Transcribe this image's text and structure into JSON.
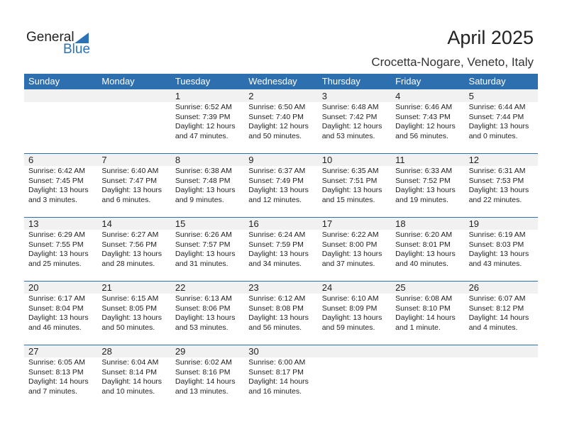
{
  "logo": {
    "general": "General",
    "blue": "Blue"
  },
  "title": "April 2025",
  "location": "Crocetta-Nogare, Veneto, Italy",
  "colors": {
    "header": "#2e6fb0",
    "band": "#f1f1f1"
  },
  "days": [
    "Sunday",
    "Monday",
    "Tuesday",
    "Wednesday",
    "Thursday",
    "Friday",
    "Saturday"
  ],
  "weeks": [
    [
      null,
      null,
      {
        "day": "1",
        "sunrise": "Sunrise: 6:52 AM",
        "sunset": "Sunset: 7:39 PM",
        "daylight": "Daylight: 12 hours",
        "minutes": "and 47 minutes."
      },
      {
        "day": "2",
        "sunrise": "Sunrise: 6:50 AM",
        "sunset": "Sunset: 7:40 PM",
        "daylight": "Daylight: 12 hours",
        "minutes": "and 50 minutes."
      },
      {
        "day": "3",
        "sunrise": "Sunrise: 6:48 AM",
        "sunset": "Sunset: 7:42 PM",
        "daylight": "Daylight: 12 hours",
        "minutes": "and 53 minutes."
      },
      {
        "day": "4",
        "sunrise": "Sunrise: 6:46 AM",
        "sunset": "Sunset: 7:43 PM",
        "daylight": "Daylight: 12 hours",
        "minutes": "and 56 minutes."
      },
      {
        "day": "5",
        "sunrise": "Sunrise: 6:44 AM",
        "sunset": "Sunset: 7:44 PM",
        "daylight": "Daylight: 13 hours",
        "minutes": "and 0 minutes."
      }
    ],
    [
      {
        "day": "6",
        "sunrise": "Sunrise: 6:42 AM",
        "sunset": "Sunset: 7:45 PM",
        "daylight": "Daylight: 13 hours",
        "minutes": "and 3 minutes."
      },
      {
        "day": "7",
        "sunrise": "Sunrise: 6:40 AM",
        "sunset": "Sunset: 7:47 PM",
        "daylight": "Daylight: 13 hours",
        "minutes": "and 6 minutes."
      },
      {
        "day": "8",
        "sunrise": "Sunrise: 6:38 AM",
        "sunset": "Sunset: 7:48 PM",
        "daylight": "Daylight: 13 hours",
        "minutes": "and 9 minutes."
      },
      {
        "day": "9",
        "sunrise": "Sunrise: 6:37 AM",
        "sunset": "Sunset: 7:49 PM",
        "daylight": "Daylight: 13 hours",
        "minutes": "and 12 minutes."
      },
      {
        "day": "10",
        "sunrise": "Sunrise: 6:35 AM",
        "sunset": "Sunset: 7:51 PM",
        "daylight": "Daylight: 13 hours",
        "minutes": "and 15 minutes."
      },
      {
        "day": "11",
        "sunrise": "Sunrise: 6:33 AM",
        "sunset": "Sunset: 7:52 PM",
        "daylight": "Daylight: 13 hours",
        "minutes": "and 19 minutes."
      },
      {
        "day": "12",
        "sunrise": "Sunrise: 6:31 AM",
        "sunset": "Sunset: 7:53 PM",
        "daylight": "Daylight: 13 hours",
        "minutes": "and 22 minutes."
      }
    ],
    [
      {
        "day": "13",
        "sunrise": "Sunrise: 6:29 AM",
        "sunset": "Sunset: 7:55 PM",
        "daylight": "Daylight: 13 hours",
        "minutes": "and 25 minutes."
      },
      {
        "day": "14",
        "sunrise": "Sunrise: 6:27 AM",
        "sunset": "Sunset: 7:56 PM",
        "daylight": "Daylight: 13 hours",
        "minutes": "and 28 minutes."
      },
      {
        "day": "15",
        "sunrise": "Sunrise: 6:26 AM",
        "sunset": "Sunset: 7:57 PM",
        "daylight": "Daylight: 13 hours",
        "minutes": "and 31 minutes."
      },
      {
        "day": "16",
        "sunrise": "Sunrise: 6:24 AM",
        "sunset": "Sunset: 7:59 PM",
        "daylight": "Daylight: 13 hours",
        "minutes": "and 34 minutes."
      },
      {
        "day": "17",
        "sunrise": "Sunrise: 6:22 AM",
        "sunset": "Sunset: 8:00 PM",
        "daylight": "Daylight: 13 hours",
        "minutes": "and 37 minutes."
      },
      {
        "day": "18",
        "sunrise": "Sunrise: 6:20 AM",
        "sunset": "Sunset: 8:01 PM",
        "daylight": "Daylight: 13 hours",
        "minutes": "and 40 minutes."
      },
      {
        "day": "19",
        "sunrise": "Sunrise: 6:19 AM",
        "sunset": "Sunset: 8:03 PM",
        "daylight": "Daylight: 13 hours",
        "minutes": "and 43 minutes."
      }
    ],
    [
      {
        "day": "20",
        "sunrise": "Sunrise: 6:17 AM",
        "sunset": "Sunset: 8:04 PM",
        "daylight": "Daylight: 13 hours",
        "minutes": "and 46 minutes."
      },
      {
        "day": "21",
        "sunrise": "Sunrise: 6:15 AM",
        "sunset": "Sunset: 8:05 PM",
        "daylight": "Daylight: 13 hours",
        "minutes": "and 50 minutes."
      },
      {
        "day": "22",
        "sunrise": "Sunrise: 6:13 AM",
        "sunset": "Sunset: 8:06 PM",
        "daylight": "Daylight: 13 hours",
        "minutes": "and 53 minutes."
      },
      {
        "day": "23",
        "sunrise": "Sunrise: 6:12 AM",
        "sunset": "Sunset: 8:08 PM",
        "daylight": "Daylight: 13 hours",
        "minutes": "and 56 minutes."
      },
      {
        "day": "24",
        "sunrise": "Sunrise: 6:10 AM",
        "sunset": "Sunset: 8:09 PM",
        "daylight": "Daylight: 13 hours",
        "minutes": "and 59 minutes."
      },
      {
        "day": "25",
        "sunrise": "Sunrise: 6:08 AM",
        "sunset": "Sunset: 8:10 PM",
        "daylight": "Daylight: 14 hours",
        "minutes": "and 1 minute."
      },
      {
        "day": "26",
        "sunrise": "Sunrise: 6:07 AM",
        "sunset": "Sunset: 8:12 PM",
        "daylight": "Daylight: 14 hours",
        "minutes": "and 4 minutes."
      }
    ],
    [
      {
        "day": "27",
        "sunrise": "Sunrise: 6:05 AM",
        "sunset": "Sunset: 8:13 PM",
        "daylight": "Daylight: 14 hours",
        "minutes": "and 7 minutes."
      },
      {
        "day": "28",
        "sunrise": "Sunrise: 6:04 AM",
        "sunset": "Sunset: 8:14 PM",
        "daylight": "Daylight: 14 hours",
        "minutes": "and 10 minutes."
      },
      {
        "day": "29",
        "sunrise": "Sunrise: 6:02 AM",
        "sunset": "Sunset: 8:16 PM",
        "daylight": "Daylight: 14 hours",
        "minutes": "and 13 minutes."
      },
      {
        "day": "30",
        "sunrise": "Sunrise: 6:00 AM",
        "sunset": "Sunset: 8:17 PM",
        "daylight": "Daylight: 14 hours",
        "minutes": "and 16 minutes."
      },
      null,
      null,
      null
    ]
  ]
}
